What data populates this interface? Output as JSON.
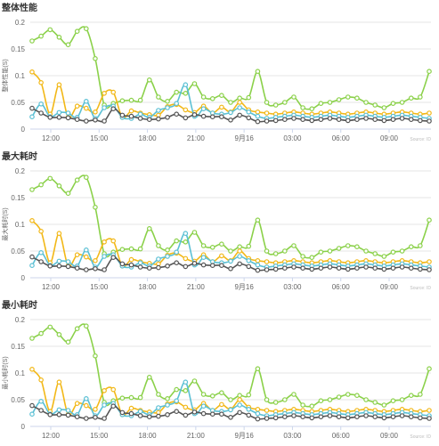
{
  "charts": [
    {
      "title": "整体性能",
      "ylabel": "整体性能(S)",
      "credit": "Source: ID"
    },
    {
      "title": "最大耗时",
      "ylabel": "最大耗时(S)",
      "credit": "Source: ID"
    },
    {
      "title": "最小耗时",
      "ylabel": "最小耗时(S)",
      "credit": "Source: ID"
    }
  ],
  "chart_data": [
    {
      "type": "line",
      "title": "整体性能",
      "ylabel": "整体性能(S)",
      "xlabel": "",
      "ylim": [
        0,
        0.2
      ],
      "yticks": [
        "0",
        "0.05",
        "0.1",
        "0.15",
        "0.2"
      ],
      "xticks": [
        "12:00",
        "15:00",
        "18:00",
        "21:00",
        "9月16",
        "03:00",
        "06:00",
        "09:00"
      ],
      "x": [
        0,
        1,
        2,
        3,
        4,
        5,
        6,
        7,
        8,
        9,
        10,
        11,
        12,
        13,
        14,
        15,
        16,
        17,
        18,
        19,
        20,
        21,
        22,
        23,
        24,
        25,
        26,
        27,
        28,
        29,
        30,
        31,
        32,
        33,
        34,
        35,
        36,
        37,
        38,
        39,
        40,
        41,
        42,
        43,
        44
      ],
      "grid": true,
      "legend": "none",
      "series": [
        {
          "color": "#8bd14a",
          "values": [
            0.165,
            0.174,
            0.186,
            0.172,
            0.158,
            0.183,
            0.188,
            0.132,
            0.045,
            0.048,
            0.053,
            0.054,
            0.054,
            0.092,
            0.06,
            0.052,
            0.069,
            0.067,
            0.085,
            0.06,
            0.057,
            0.063,
            0.05,
            0.058,
            0.059,
            0.108,
            0.05,
            0.045,
            0.05,
            0.06,
            0.04,
            0.038,
            0.048,
            0.05,
            0.055,
            0.06,
            0.058,
            0.05,
            0.045,
            0.04,
            0.048,
            0.05,
            0.058,
            0.06,
            0.108
          ]
        },
        {
          "color": "#f2b818",
          "values": [
            0.107,
            0.087,
            0.028,
            0.083,
            0.022,
            0.043,
            0.039,
            0.032,
            0.067,
            0.069,
            0.022,
            0.034,
            0.03,
            0.027,
            0.026,
            0.042,
            0.046,
            0.036,
            0.031,
            0.043,
            0.03,
            0.041,
            0.032,
            0.05,
            0.036,
            0.032,
            0.03,
            0.028,
            0.03,
            0.032,
            0.03,
            0.028,
            0.03,
            0.032,
            0.03,
            0.028,
            0.03,
            0.032,
            0.03,
            0.028,
            0.03,
            0.032,
            0.03,
            0.028,
            0.03
          ]
        },
        {
          "color": "#5bc0d4",
          "values": [
            0.023,
            0.047,
            0.023,
            0.031,
            0.03,
            0.022,
            0.052,
            0.02,
            0.04,
            0.043,
            0.022,
            0.02,
            0.028,
            0.022,
            0.035,
            0.04,
            0.048,
            0.083,
            0.024,
            0.038,
            0.03,
            0.028,
            0.031,
            0.04,
            0.032,
            0.024,
            0.02,
            0.022,
            0.024,
            0.026,
            0.024,
            0.022,
            0.024,
            0.026,
            0.024,
            0.022,
            0.024,
            0.026,
            0.024,
            0.022,
            0.024,
            0.026,
            0.024,
            0.022,
            0.02
          ]
        },
        {
          "color": "#555555",
          "values": [
            0.039,
            0.03,
            0.022,
            0.022,
            0.021,
            0.018,
            0.015,
            0.017,
            0.015,
            0.038,
            0.026,
            0.024,
            0.02,
            0.018,
            0.019,
            0.022,
            0.028,
            0.021,
            0.027,
            0.024,
            0.023,
            0.023,
            0.017,
            0.026,
            0.021,
            0.014,
            0.015,
            0.016,
            0.018,
            0.02,
            0.018,
            0.016,
            0.018,
            0.02,
            0.018,
            0.016,
            0.018,
            0.02,
            0.018,
            0.016,
            0.018,
            0.02,
            0.018,
            0.016,
            0.015
          ]
        }
      ]
    },
    {
      "type": "line",
      "title": "最大耗时",
      "ylabel": "最大耗时(S)",
      "xlabel": "",
      "ylim": [
        0,
        0.2
      ],
      "yticks": [
        "0",
        "0.05",
        "0.1",
        "0.15",
        "0.2"
      ],
      "xticks": [
        "12:00",
        "15:00",
        "18:00",
        "21:00",
        "9月16",
        "03:00",
        "06:00",
        "09:00"
      ],
      "x": [
        0,
        1,
        2,
        3,
        4,
        5,
        6,
        7,
        8,
        9,
        10,
        11,
        12,
        13,
        14,
        15,
        16,
        17,
        18,
        19,
        20,
        21,
        22,
        23,
        24,
        25,
        26,
        27,
        28,
        29,
        30,
        31,
        32,
        33,
        34,
        35,
        36,
        37,
        38,
        39,
        40,
        41,
        42,
        43,
        44
      ],
      "grid": true,
      "legend": "none",
      "series": [
        {
          "color": "#8bd14a",
          "values": [
            0.165,
            0.174,
            0.186,
            0.172,
            0.158,
            0.183,
            0.188,
            0.132,
            0.045,
            0.048,
            0.053,
            0.054,
            0.054,
            0.092,
            0.06,
            0.052,
            0.069,
            0.067,
            0.085,
            0.06,
            0.057,
            0.063,
            0.05,
            0.058,
            0.059,
            0.108,
            0.05,
            0.045,
            0.05,
            0.06,
            0.04,
            0.038,
            0.048,
            0.05,
            0.055,
            0.06,
            0.058,
            0.05,
            0.045,
            0.04,
            0.048,
            0.05,
            0.058,
            0.06,
            0.108
          ]
        },
        {
          "color": "#f2b818",
          "values": [
            0.107,
            0.087,
            0.028,
            0.083,
            0.022,
            0.043,
            0.039,
            0.032,
            0.067,
            0.069,
            0.022,
            0.034,
            0.03,
            0.027,
            0.026,
            0.042,
            0.046,
            0.036,
            0.031,
            0.043,
            0.03,
            0.041,
            0.032,
            0.05,
            0.036,
            0.032,
            0.03,
            0.028,
            0.03,
            0.032,
            0.03,
            0.028,
            0.03,
            0.032,
            0.03,
            0.028,
            0.03,
            0.032,
            0.03,
            0.028,
            0.03,
            0.032,
            0.03,
            0.028,
            0.03
          ]
        },
        {
          "color": "#5bc0d4",
          "values": [
            0.023,
            0.047,
            0.023,
            0.031,
            0.03,
            0.022,
            0.052,
            0.02,
            0.04,
            0.043,
            0.022,
            0.02,
            0.028,
            0.022,
            0.035,
            0.04,
            0.048,
            0.083,
            0.024,
            0.038,
            0.03,
            0.028,
            0.031,
            0.04,
            0.032,
            0.024,
            0.02,
            0.022,
            0.024,
            0.026,
            0.024,
            0.022,
            0.024,
            0.026,
            0.024,
            0.022,
            0.024,
            0.026,
            0.024,
            0.022,
            0.024,
            0.026,
            0.024,
            0.022,
            0.02
          ]
        },
        {
          "color": "#555555",
          "values": [
            0.039,
            0.03,
            0.022,
            0.022,
            0.021,
            0.018,
            0.015,
            0.017,
            0.015,
            0.038,
            0.026,
            0.024,
            0.02,
            0.018,
            0.019,
            0.022,
            0.028,
            0.021,
            0.027,
            0.024,
            0.023,
            0.023,
            0.017,
            0.026,
            0.021,
            0.014,
            0.015,
            0.016,
            0.018,
            0.02,
            0.018,
            0.016,
            0.018,
            0.02,
            0.018,
            0.016,
            0.018,
            0.02,
            0.018,
            0.016,
            0.018,
            0.02,
            0.018,
            0.016,
            0.015
          ]
        }
      ]
    },
    {
      "type": "line",
      "title": "最小耗时",
      "ylabel": "最小耗时(S)",
      "xlabel": "",
      "ylim": [
        0,
        0.2
      ],
      "yticks": [
        "0",
        "0.05",
        "0.1",
        "0.15",
        "0.2"
      ],
      "xticks": [
        "12:00",
        "15:00",
        "18:00",
        "21:00",
        "9月16",
        "03:00",
        "06:00",
        "09:00"
      ],
      "x": [
        0,
        1,
        2,
        3,
        4,
        5,
        6,
        7,
        8,
        9,
        10,
        11,
        12,
        13,
        14,
        15,
        16,
        17,
        18,
        19,
        20,
        21,
        22,
        23,
        24,
        25,
        26,
        27,
        28,
        29,
        30,
        31,
        32,
        33,
        34,
        35,
        36,
        37,
        38,
        39,
        40,
        41,
        42,
        43,
        44
      ],
      "grid": true,
      "legend": "none",
      "series": [
        {
          "color": "#8bd14a",
          "values": [
            0.165,
            0.174,
            0.186,
            0.172,
            0.158,
            0.183,
            0.188,
            0.132,
            0.045,
            0.048,
            0.053,
            0.054,
            0.054,
            0.092,
            0.06,
            0.052,
            0.069,
            0.067,
            0.085,
            0.06,
            0.057,
            0.063,
            0.05,
            0.058,
            0.059,
            0.108,
            0.05,
            0.045,
            0.05,
            0.06,
            0.04,
            0.038,
            0.048,
            0.05,
            0.055,
            0.06,
            0.058,
            0.05,
            0.045,
            0.04,
            0.048,
            0.05,
            0.058,
            0.06,
            0.108
          ]
        },
        {
          "color": "#f2b818",
          "values": [
            0.107,
            0.087,
            0.028,
            0.083,
            0.022,
            0.043,
            0.039,
            0.032,
            0.067,
            0.069,
            0.022,
            0.034,
            0.03,
            0.027,
            0.026,
            0.042,
            0.046,
            0.036,
            0.031,
            0.043,
            0.03,
            0.041,
            0.032,
            0.05,
            0.036,
            0.032,
            0.03,
            0.028,
            0.03,
            0.032,
            0.03,
            0.028,
            0.03,
            0.032,
            0.03,
            0.028,
            0.03,
            0.032,
            0.03,
            0.028,
            0.03,
            0.032,
            0.03,
            0.028,
            0.03
          ]
        },
        {
          "color": "#5bc0d4",
          "values": [
            0.023,
            0.047,
            0.023,
            0.031,
            0.03,
            0.022,
            0.052,
            0.02,
            0.04,
            0.043,
            0.022,
            0.02,
            0.028,
            0.022,
            0.035,
            0.04,
            0.048,
            0.083,
            0.024,
            0.038,
            0.03,
            0.028,
            0.031,
            0.04,
            0.032,
            0.024,
            0.02,
            0.022,
            0.024,
            0.026,
            0.024,
            0.022,
            0.024,
            0.026,
            0.024,
            0.022,
            0.024,
            0.026,
            0.024,
            0.022,
            0.024,
            0.026,
            0.024,
            0.022,
            0.02
          ]
        },
        {
          "color": "#555555",
          "values": [
            0.039,
            0.03,
            0.022,
            0.022,
            0.021,
            0.018,
            0.015,
            0.017,
            0.015,
            0.038,
            0.026,
            0.024,
            0.02,
            0.018,
            0.019,
            0.022,
            0.028,
            0.021,
            0.027,
            0.024,
            0.023,
            0.023,
            0.017,
            0.026,
            0.021,
            0.014,
            0.015,
            0.016,
            0.018,
            0.02,
            0.018,
            0.016,
            0.018,
            0.02,
            0.018,
            0.016,
            0.018,
            0.02,
            0.018,
            0.016,
            0.018,
            0.02,
            0.018,
            0.016,
            0.015
          ]
        }
      ]
    }
  ]
}
